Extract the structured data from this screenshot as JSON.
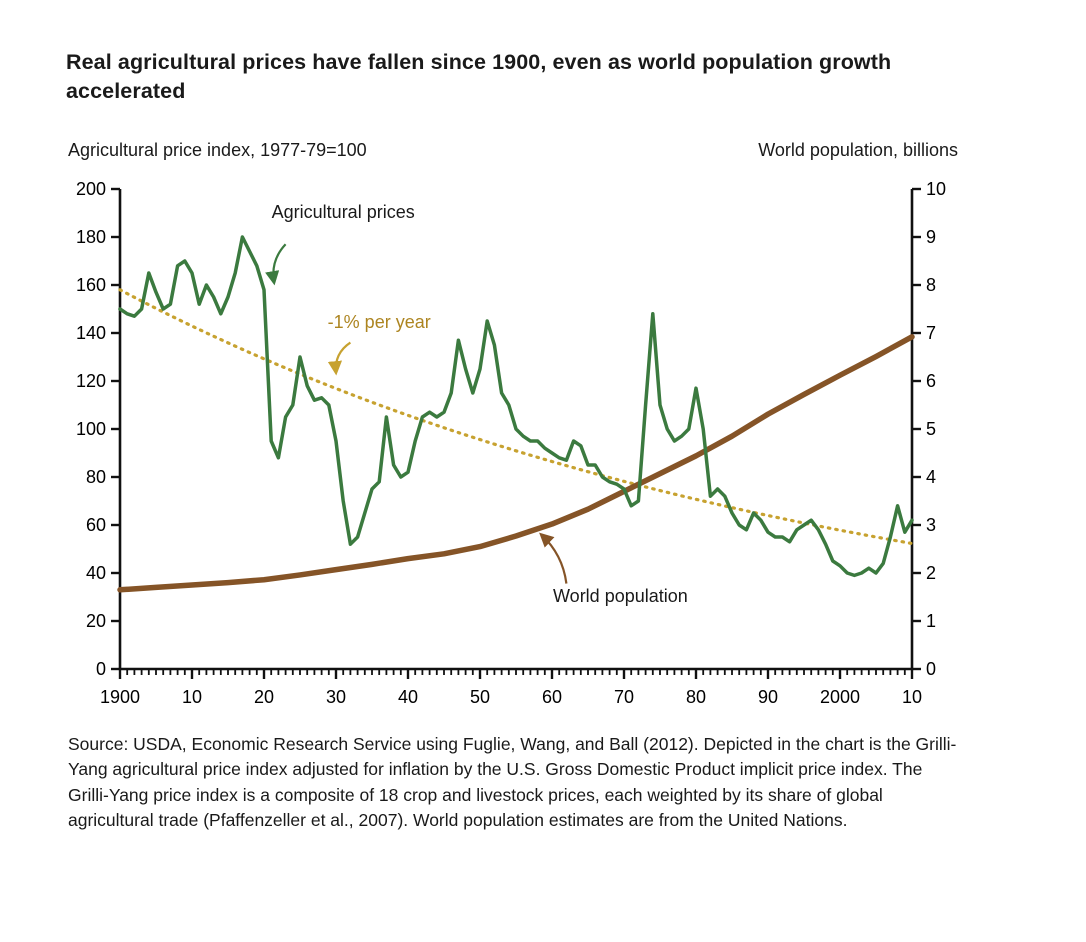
{
  "chart_data": {
    "type": "line",
    "title": "Real agricultural prices have fallen since 1900, even as world population growth accelerated",
    "left_axis": {
      "label": "Agricultural price index, 1977-79=100",
      "min": 0,
      "max": 200,
      "tick_step": 20
    },
    "right_axis": {
      "label": "World population, billions",
      "min": 0,
      "max": 10,
      "tick_step": 1
    },
    "x_axis": {
      "min": 1900,
      "max": 2010,
      "major_tick_step": 10,
      "minor_tick_step": 1,
      "tick_labels": [
        "1900",
        "10",
        "20",
        "30",
        "40",
        "50",
        "60",
        "70",
        "80",
        "90",
        "2000",
        "10"
      ]
    },
    "series": [
      {
        "name": "-1% per year",
        "axis": "left",
        "color": "#c7a230",
        "style": "dotted",
        "width": 3.2,
        "start_value": 158,
        "annual_rate": -0.01
      },
      {
        "name": "World population",
        "axis": "right",
        "color": "#855427",
        "style": "solid",
        "width": 5.5,
        "x_start": 1900,
        "x_step": 5,
        "values": [
          1.65,
          1.7,
          1.75,
          1.8,
          1.86,
          1.96,
          2.07,
          2.18,
          2.3,
          2.4,
          2.55,
          2.77,
          3.02,
          3.33,
          3.7,
          4.07,
          4.44,
          4.85,
          5.31,
          5.72,
          6.12,
          6.51,
          6.92
        ]
      },
      {
        "name": "Agricultural prices",
        "axis": "left",
        "color": "#3b7a3f",
        "style": "solid",
        "width": 3.5,
        "x_start": 1900,
        "x_step": 1,
        "values": [
          150,
          148,
          147,
          150,
          165,
          157,
          150,
          152,
          168,
          170,
          165,
          152,
          160,
          155,
          148,
          155,
          165,
          180,
          174,
          168,
          158,
          95,
          88,
          105,
          110,
          130,
          118,
          112,
          113,
          110,
          95,
          70,
          52,
          55,
          65,
          75,
          78,
          105,
          85,
          80,
          82,
          95,
          105,
          107,
          105,
          107,
          115,
          137,
          125,
          115,
          125,
          145,
          135,
          115,
          110,
          100,
          97,
          95,
          95,
          92,
          90,
          88,
          87,
          95,
          93,
          85,
          85,
          80,
          78,
          77,
          75,
          68,
          70,
          110,
          148,
          110,
          100,
          95,
          97,
          100,
          117,
          100,
          72,
          75,
          72,
          65,
          60,
          58,
          65,
          62,
          57,
          55,
          55,
          53,
          58,
          60,
          62,
          58,
          52,
          45,
          43,
          40,
          39,
          40,
          42,
          40,
          44,
          55,
          68,
          57,
          62
        ]
      }
    ],
    "annotations": [
      {
        "text": "Agricultural prices",
        "text_color": "#1a1a1a",
        "arrow_color": "#3b7a3f",
        "axis": "left",
        "text_at": [
          1931,
          188
        ],
        "arrow_from": [
          1923,
          177
        ],
        "arrow_to": [
          1921.4,
          161
        ]
      },
      {
        "text": "-1% per year",
        "text_color": "#ad8521",
        "arrow_color": "#c7a230",
        "axis": "left",
        "text_at": [
          1936,
          142
        ],
        "arrow_from": [
          1932,
          136
        ],
        "arrow_to": [
          1930,
          123.5
        ]
      },
      {
        "text": "World population",
        "text_color": "#1a1a1a",
        "arrow_color": "#855427",
        "axis": "right",
        "text_at": [
          1969.5,
          1.4
        ],
        "arrow_from": [
          1962,
          1.78
        ],
        "arrow_to": [
          1958.5,
          2.8
        ]
      }
    ],
    "source": "Source: USDA, Economic Research Service using Fuglie, Wang, and Ball (2012). Depicted in the chart is the Grilli-Yang agricultural price index adjusted for inflation by the U.S. Gross Domestic Product implicit price index. The Grilli-Yang price index is a composite of 18 crop and livestock prices, each weighted by its share of global agricultural trade (Pfaffenzeller et al., 2007). World population estimates are from the United Nations."
  }
}
